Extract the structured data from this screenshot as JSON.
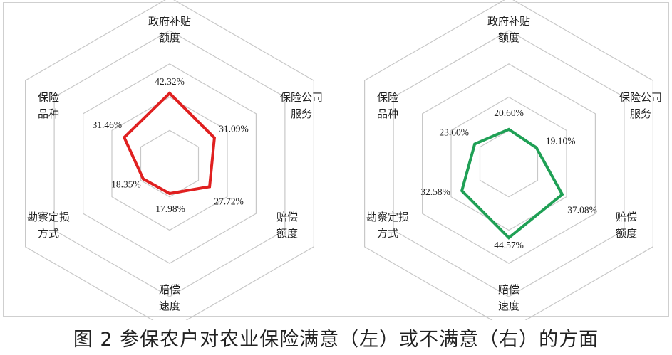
{
  "caption": "图 2 参保农户对农业保险满意（左）或不满意（右）的方面",
  "chart_data": [
    {
      "type": "radar",
      "axes": [
        [
          "政府补贴",
          "额度"
        ],
        [
          "保险公司",
          "服务"
        ],
        [
          "赔偿",
          "额度"
        ],
        [
          "赔偿",
          "速度"
        ],
        [
          "勘察定损",
          "方式"
        ],
        [
          "保险",
          "品种"
        ]
      ],
      "values": [
        42.32,
        31.09,
        27.72,
        17.98,
        18.35,
        31.46
      ],
      "value_labels": [
        "42.32%",
        "31.09%",
        "27.72%",
        "17.98%",
        "18.35%",
        "31.46%"
      ],
      "rmax": 100,
      "rings": 5,
      "color": "#e02020"
    },
    {
      "type": "radar",
      "axes": [
        [
          "政府补贴",
          "额度"
        ],
        [
          "保险公司",
          "服务"
        ],
        [
          "赔偿",
          "额度"
        ],
        [
          "赔偿",
          "速度"
        ],
        [
          "勘察定损",
          "方式"
        ],
        [
          "保险",
          "品种"
        ]
      ],
      "values": [
        20.6,
        19.1,
        37.08,
        44.57,
        32.58,
        23.6
      ],
      "value_labels": [
        "20.60%",
        "19.10%",
        "37.08%",
        "44.57%",
        "32.58%",
        "23.60%"
      ],
      "rmax": 100,
      "rings": 5,
      "color": "#1fa055"
    }
  ]
}
